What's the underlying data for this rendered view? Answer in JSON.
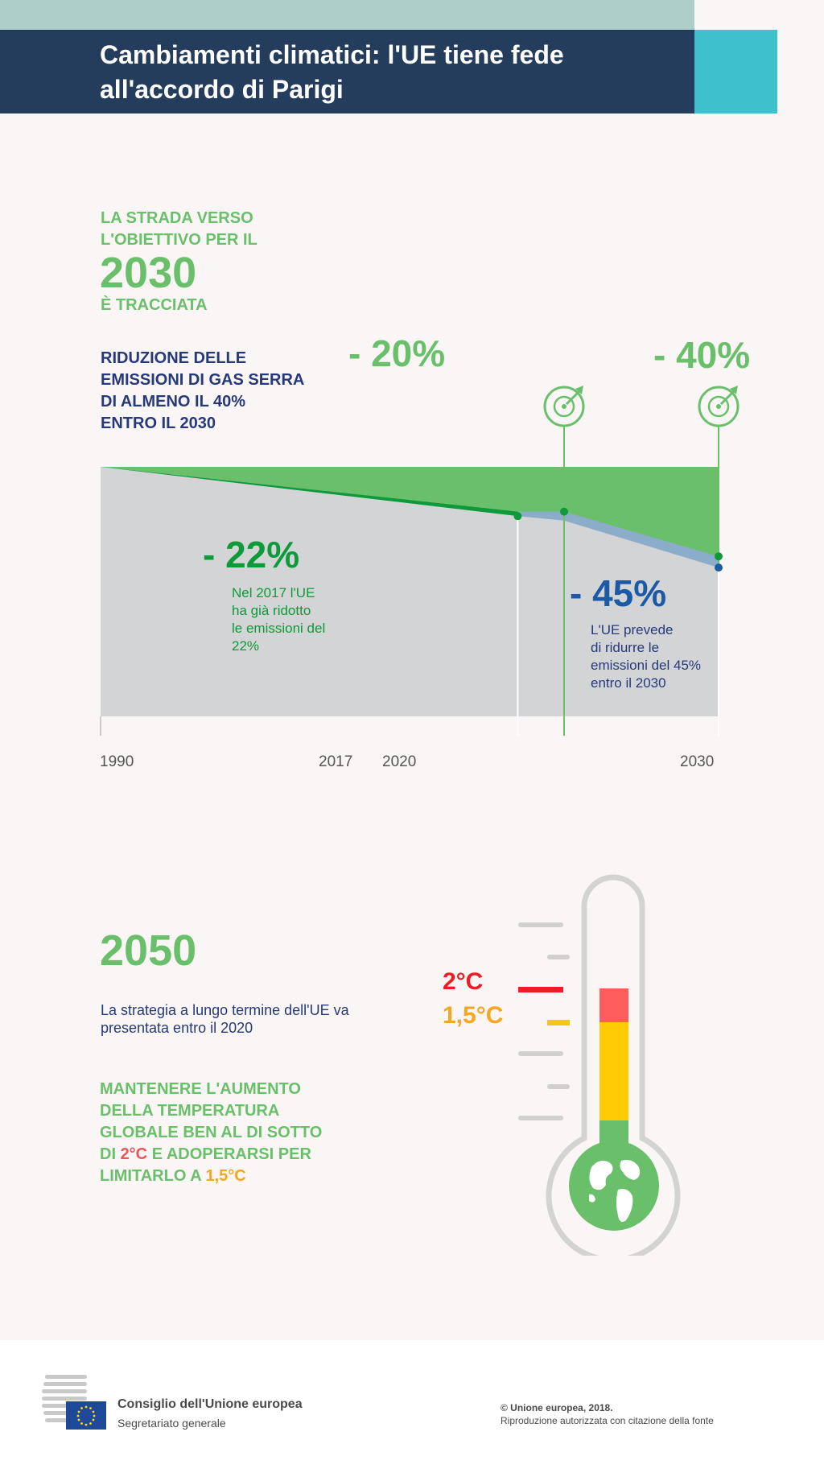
{
  "header": {
    "title_line1": "Cambiamenti climatici: l'UE tiene fede",
    "title_line2": "all'accordo di Parigi"
  },
  "section1": {
    "kicker_line1": "LA STRADA VERSO",
    "kicker_line2": "L'OBIETTIVO PER IL",
    "big_year": "2030",
    "kicker_line3": "È TRACCIATA",
    "subhead": [
      "RIDUZIONE DELLE",
      "EMISSIONI DI GAS SERRA",
      "DI ALMENO IL 40%",
      "ENTRO IL 2030"
    ]
  },
  "chart_data": {
    "type": "area",
    "x": [
      1990,
      2017,
      2020,
      2030
    ],
    "xtick_labels": [
      "1990",
      "2017",
      "2020",
      "2030"
    ],
    "series": [
      {
        "values": [
          0,
          -22,
          -24,
          -45
        ],
        "color": "#8badc9"
      },
      {
        "values": [
          0,
          -20,
          -20,
          -40
        ],
        "color": "#6abf6b"
      }
    ],
    "targets": [
      {
        "year": 2020,
        "label": "- 20%"
      },
      {
        "year": 2030,
        "label": "- 40%"
      }
    ],
    "annotations": {
      "achieved": {
        "label": "- 22%",
        "note": [
          "Nel 2017 l'UE",
          "ha già ridotto",
          "le emissioni del",
          "22%"
        ]
      },
      "projected": {
        "label": "- 45%",
        "note": [
          "L'UE prevede",
          "di ridurre le",
          "emissioni del 45%",
          "entro il 2030"
        ]
      }
    },
    "ylim": [
      -55,
      0
    ],
    "colors": {
      "target": "#6abf6b",
      "achieved": "#0d9a39",
      "projected": "#1d5aa6",
      "background": "#d3d4d6"
    }
  },
  "section2": {
    "year": "2050",
    "strategy": [
      "La strategia a lungo termine dell'UE va",
      "presentata entro il 2020"
    ],
    "keep_lines": [
      "MANTENERE L'AUMENTO",
      "DELLA TEMPERATURA",
      "GLOBALE BEN AL DI SOTTO"
    ],
    "keep_line4": {
      "pre": "DI ",
      "hl": "2°C",
      "post": " E ADOPERARSI PER"
    },
    "keep_line5": {
      "pre": "LIMITARLO A ",
      "hl": "1,5°C"
    },
    "label_2c": "2°C",
    "label_15c": "1,5°C"
  },
  "footer": {
    "council": "Consiglio dell'Unione europea",
    "council_sub": "Segretariato generale",
    "copyright": "© Unione europea, 2018.",
    "reproduction": "Riproduzione autorizzata con citazione della fonte"
  }
}
